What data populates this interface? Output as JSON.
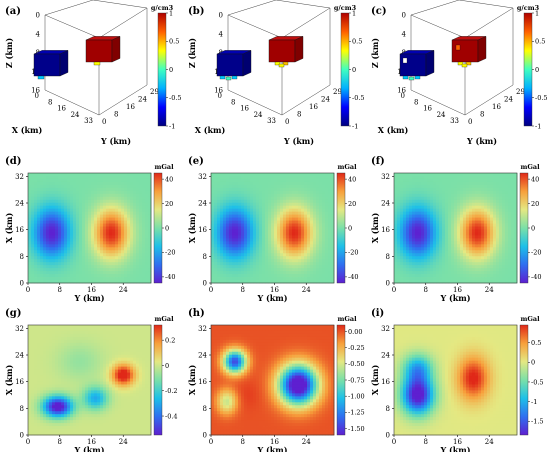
{
  "colors": {
    "cmap": [
      "#5e1fd0",
      "#2f6ff0",
      "#1ec0e8",
      "#7be0a8",
      "#e4e882",
      "#f7a03c",
      "#e02818"
    ],
    "cmap_block": [
      "#00007f",
      "#0000ff",
      "#00b0ff",
      "#40ffc0",
      "#ffff00",
      "#ff6000",
      "#b00000"
    ],
    "box": "#222222"
  },
  "chart_data": [
    {
      "panel": "(a)",
      "type": "3d-blocks",
      "unit": "g/cm3",
      "xlabel": "X (km)",
      "ylabel": "Y (km)",
      "zlabel": "Z (km)",
      "xticks": [
        "0",
        "8",
        "16",
        "24",
        "33"
      ],
      "yticks": [
        "0",
        "8",
        "16",
        "24",
        "29"
      ],
      "zticks": [
        "0",
        "4",
        "8",
        "12",
        "16"
      ],
      "colorbar": {
        "range": [
          -1,
          1
        ],
        "ticks": [
          "1",
          "0.5",
          "0",
          "-0.5",
          "-1"
        ]
      },
      "blocks": [
        {
          "density": -1
        },
        {
          "density": 1
        }
      ]
    },
    {
      "panel": "(b)",
      "type": "3d-blocks",
      "unit": "g/cm3",
      "xlabel": "X (km)",
      "ylabel": "Y (km)",
      "zlabel": "Z (km)",
      "xticks": [
        "0",
        "8",
        "16",
        "24",
        "33"
      ],
      "yticks": [
        "0",
        "8",
        "16",
        "24",
        "29"
      ],
      "zticks": [
        "0",
        "4",
        "8",
        "12",
        "16"
      ],
      "colorbar": {
        "range": [
          -1,
          1
        ],
        "ticks": [
          "1",
          "0.5",
          "0",
          "-0.5",
          "-1"
        ]
      },
      "blocks": [
        {
          "density": -1
        },
        {
          "density": 1
        }
      ]
    },
    {
      "panel": "(c)",
      "type": "3d-blocks",
      "unit": "g/cm3",
      "xlabel": "X (km)",
      "ylabel": "Y (km)",
      "zlabel": "Z (km)",
      "xticks": [
        "0",
        "8",
        "16",
        "24",
        "33"
      ],
      "yticks": [
        "0",
        "8",
        "16",
        "24",
        "29"
      ],
      "zticks": [
        "0",
        "4",
        "8",
        "12",
        "16"
      ],
      "colorbar": {
        "range": [
          -1,
          1
        ],
        "ticks": [
          "1",
          "0.5",
          "0",
          "-0.5",
          "-1"
        ]
      },
      "blocks": [
        {
          "density": -1
        },
        {
          "density": 1
        }
      ]
    },
    {
      "panel": "(d)",
      "type": "heatmap",
      "unit": "mGal",
      "xlabel": "Y (km)",
      "ylabel": "X (km)",
      "xlim": [
        0,
        31
      ],
      "ylim": [
        0,
        33
      ],
      "xticks": [
        0,
        8,
        16,
        24
      ],
      "yticks": [
        0,
        8,
        16,
        24,
        32
      ],
      "colorbar": {
        "range": [
          -45,
          45
        ],
        "ticks": [
          40,
          20,
          0,
          -20,
          -40
        ]
      },
      "anomalies": [
        {
          "x": 6,
          "y": 15,
          "value": -45,
          "sx": 3.2,
          "sy": 5.2
        },
        {
          "x": 21,
          "y": 15,
          "value": 45,
          "sx": 3.2,
          "sy": 5.2
        }
      ]
    },
    {
      "panel": "(e)",
      "type": "heatmap",
      "unit": "mGal",
      "xlabel": "Y (km)",
      "ylabel": "X (km)",
      "xlim": [
        0,
        31
      ],
      "ylim": [
        0,
        33
      ],
      "xticks": [
        0,
        8,
        16,
        24
      ],
      "yticks": [
        0,
        8,
        16,
        24,
        32
      ],
      "colorbar": {
        "range": [
          -45,
          45
        ],
        "ticks": [
          40,
          20,
          0,
          -20,
          -40
        ]
      },
      "anomalies": [
        {
          "x": 6,
          "y": 15,
          "value": -45,
          "sx": 3.2,
          "sy": 5.2
        },
        {
          "x": 21,
          "y": 15,
          "value": 45,
          "sx": 3.2,
          "sy": 5.2
        }
      ]
    },
    {
      "panel": "(f)",
      "type": "heatmap",
      "unit": "mGal",
      "xlabel": "Y (km)",
      "ylabel": "X (km)",
      "xlim": [
        0,
        31
      ],
      "ylim": [
        0,
        33
      ],
      "xticks": [
        0,
        8,
        16,
        24
      ],
      "yticks": [
        0,
        8,
        16,
        24,
        32
      ],
      "colorbar": {
        "range": [
          -45,
          45
        ],
        "ticks": [
          40,
          20,
          0,
          -20,
          -40
        ]
      },
      "anomalies": [
        {
          "x": 6,
          "y": 15,
          "value": -45,
          "sx": 3.2,
          "sy": 5.2
        },
        {
          "x": 21,
          "y": 15,
          "value": 45,
          "sx": 3.2,
          "sy": 5.2
        }
      ]
    },
    {
      "panel": "(g)",
      "type": "heatmap",
      "unit": "mGal",
      "xlabel": "Y (km)",
      "ylabel": "X (km)",
      "xlim": [
        0,
        31
      ],
      "ylim": [
        0,
        33
      ],
      "xticks": [
        0,
        8,
        16,
        24
      ],
      "yticks": [
        0,
        8,
        16,
        24,
        32
      ],
      "colorbar": {
        "range": [
          -0.55,
          0.32
        ],
        "ticks": [
          0.2,
          0,
          -0.2,
          -0.4
        ]
      },
      "anomalies": [
        {
          "x": 7.5,
          "y": 8.5,
          "value": -0.6,
          "sx": 2.6,
          "sy": 2.2
        },
        {
          "x": 17,
          "y": 11,
          "value": -0.3,
          "sx": 2.2,
          "sy": 2.4
        },
        {
          "x": 24,
          "y": 18,
          "value": 0.38,
          "sx": 2.0,
          "sy": 2.2
        },
        {
          "x": 13,
          "y": 22,
          "value": -0.08,
          "sx": 4,
          "sy": 4
        }
      ]
    },
    {
      "panel": "(h)",
      "type": "heatmap",
      "unit": "mGal",
      "xlabel": "Y (km)",
      "ylabel": "X (km)",
      "xlim": [
        0,
        31
      ],
      "ylim": [
        0,
        33
      ],
      "xticks": [
        0,
        8,
        16,
        24
      ],
      "yticks": [
        0,
        8,
        16,
        24,
        32
      ],
      "colorbar": {
        "range": [
          -1.6,
          0.1
        ],
        "ticks": [
          0,
          -0.25,
          -0.5,
          -0.75,
          -1.0,
          -1.25,
          -1.5
        ]
      },
      "anomalies": [
        {
          "x": 6,
          "y": 22,
          "value": -1.45,
          "sx": 2.0,
          "sy": 2.4
        },
        {
          "x": 22,
          "y": 15,
          "value": -1.85,
          "sx": 3.4,
          "sy": 4.2
        },
        {
          "x": 4,
          "y": 10,
          "value": -0.55,
          "sx": 1.8,
          "sy": 2.6
        },
        {
          "x": 9,
          "y": 12,
          "value": 0.05,
          "sx": 2.5,
          "sy": 3
        }
      ]
    },
    {
      "panel": "(i)",
      "type": "heatmap",
      "unit": "mGal",
      "xlabel": "Y (km)",
      "ylabel": "X (km)",
      "xlim": [
        0,
        31
      ],
      "ylim": [
        0,
        33
      ],
      "xticks": [
        0,
        8,
        16,
        24
      ],
      "yticks": [
        0,
        8,
        16,
        24,
        32
      ],
      "colorbar": {
        "range": [
          -1.85,
          0.95
        ],
        "ticks": [
          0.5,
          0,
          -0.5,
          -1,
          -1.5
        ]
      },
      "anomalies": [
        {
          "x": 6,
          "y": 12,
          "value": -2.0,
          "sx": 2.8,
          "sy": 4.0
        },
        {
          "x": 6,
          "y": 20,
          "value": -1.0,
          "sx": 2.6,
          "sy": 3.0
        },
        {
          "x": 20,
          "y": 17,
          "value": 1.0,
          "sx": 2.8,
          "sy": 4.6
        }
      ]
    }
  ]
}
